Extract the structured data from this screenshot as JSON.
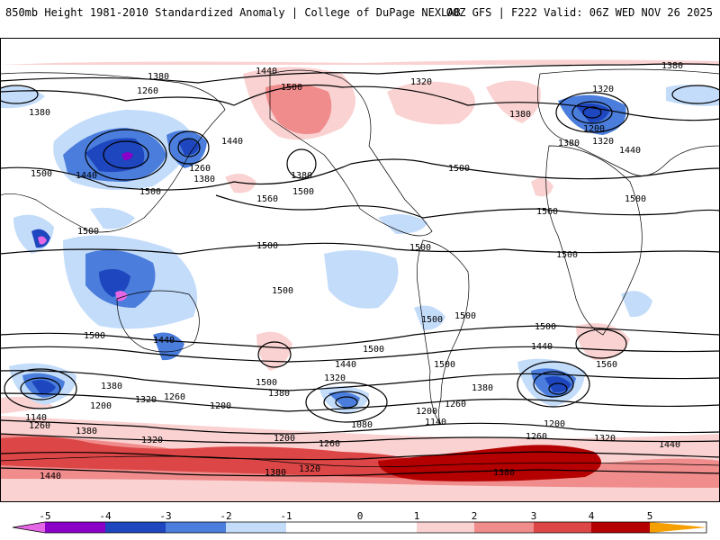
{
  "header": {
    "title_left": "850mb Height 1981-2010 Standardized Anomaly | College of DuPage NEXLAB",
    "title_right": "00Z GFS | F222 Valid: 06Z WED NOV 26 2025"
  },
  "colors": {
    "neg5": "#e667e6",
    "neg4": "#8a00c8",
    "neg3": "#1e46be",
    "neg2": "#4b7ddc",
    "neg1": "#c3dcfa",
    "pos1": "#fad2d2",
    "pos2": "#f08c8c",
    "pos3": "#dc4646",
    "pos4": "#b40000",
    "pos5": "#f5a000",
    "contour": "#000000",
    "coast": "#000000"
  },
  "colorbar": {
    "ticks": [
      "-5",
      "-4",
      "-3",
      "-2",
      "-1",
      "0",
      "1",
      "2",
      "3",
      "4",
      "5"
    ]
  },
  "contour_labels": [
    "1380",
    "1440",
    "1500",
    "1320",
    "1380",
    "1380",
    "1260",
    "1380",
    "1320",
    "1500",
    "1440",
    "1500",
    "1440",
    "1260",
    "1380",
    "1560",
    "1380",
    "1500",
    "1200",
    "1320",
    "1380",
    "1440",
    "1500",
    "1500",
    "1560",
    "1500",
    "1500",
    "1500",
    "1500",
    "1500",
    "1500",
    "1500",
    "1500",
    "1500",
    "1500",
    "1440",
    "1500",
    "1440",
    "1560",
    "1380",
    "1320",
    "1440",
    "1320",
    "1380",
    "1500",
    "1380",
    "1140",
    "1200",
    "1260",
    "1200",
    "1080",
    "1200",
    "1140",
    "1260",
    "1200",
    "1260",
    "1320",
    "1440",
    "1260",
    "1380",
    "1200",
    "1260",
    "1320",
    "1380",
    "1320",
    "1380",
    "1440"
  ]
}
